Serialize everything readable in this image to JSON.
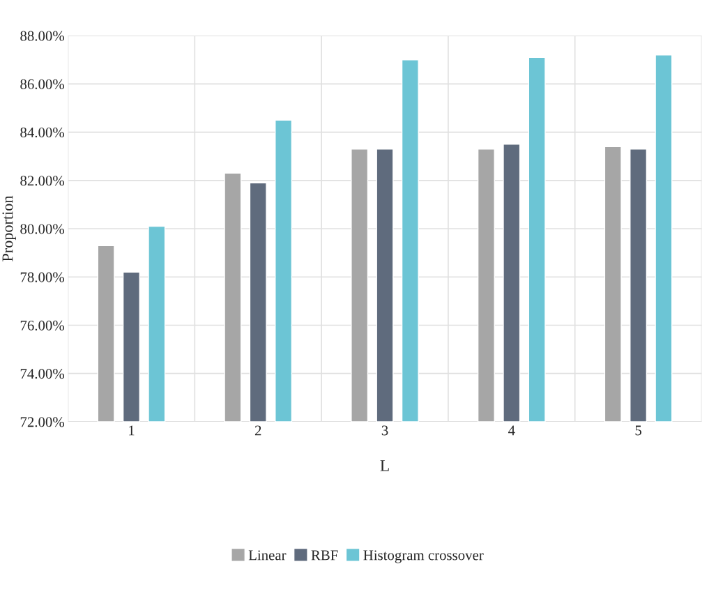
{
  "chart_data": {
    "type": "bar",
    "xlabel": "L",
    "ylabel": "Proportion",
    "categories": [
      "1",
      "2",
      "3",
      "4",
      "5"
    ],
    "series": [
      {
        "name": "Linear",
        "color": "#a6a6a6",
        "values": [
          79.3,
          82.3,
          83.3,
          83.3,
          83.4
        ]
      },
      {
        "name": "RBF",
        "color": "#5f6b7d",
        "values": [
          78.2,
          81.9,
          83.3,
          83.5,
          83.3
        ]
      },
      {
        "name": "Histogram crossover",
        "color": "#6cc5d5",
        "values": [
          80.1,
          84.5,
          87.0,
          87.1,
          87.2
        ]
      }
    ],
    "ylim": [
      72,
      88
    ],
    "yticks": [
      {
        "value": 72,
        "label": "72.00%"
      },
      {
        "value": 74,
        "label": "74.00%"
      },
      {
        "value": 76,
        "label": "76.00%"
      },
      {
        "value": 78,
        "label": "78.00%"
      },
      {
        "value": 80,
        "label": "80.00%"
      },
      {
        "value": 82,
        "label": "82.00%"
      },
      {
        "value": 84,
        "label": "84.00%"
      },
      {
        "value": 86,
        "label": "86.00%"
      },
      {
        "value": 88,
        "label": "88.00%"
      }
    ],
    "grid": true,
    "legend": "bottom"
  }
}
